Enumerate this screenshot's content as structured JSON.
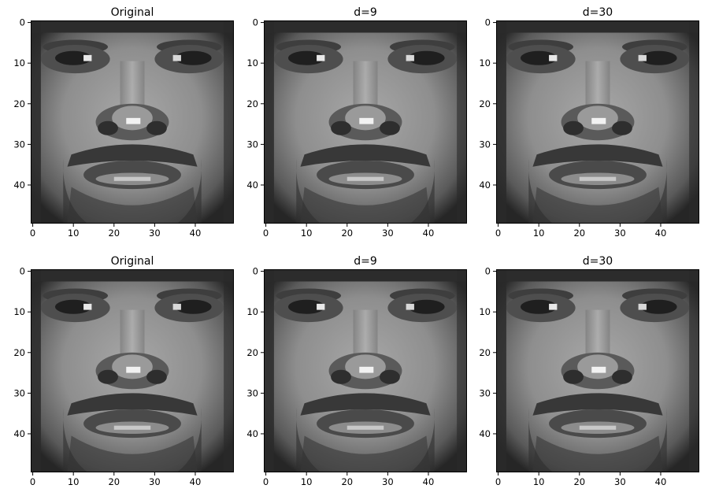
{
  "figure": {
    "background": "#ffffff",
    "axis_color": "#000000",
    "image_colormap": "gray"
  },
  "chart_data": [
    {
      "type": "heatmap",
      "title": "Original",
      "x_ticks": [
        "0",
        "10",
        "20",
        "30",
        "40"
      ],
      "y_ticks": [
        "0",
        "10",
        "20",
        "30",
        "40"
      ],
      "xlim": [
        -0.5,
        49.5
      ],
      "ylim": [
        49.5,
        -0.5
      ],
      "image_size": [
        50,
        50
      ],
      "image": "grayscale face",
      "row": 1,
      "col": 1
    },
    {
      "type": "heatmap",
      "title": "d=9",
      "x_ticks": [
        "0",
        "10",
        "20",
        "30",
        "40"
      ],
      "y_ticks": [
        "0",
        "10",
        "20",
        "30",
        "40"
      ],
      "xlim": [
        -0.5,
        49.5
      ],
      "ylim": [
        49.5,
        -0.5
      ],
      "image_size": [
        50,
        50
      ],
      "image": "grayscale face",
      "row": 1,
      "col": 2
    },
    {
      "type": "heatmap",
      "title": "d=30",
      "x_ticks": [
        "0",
        "10",
        "20",
        "30",
        "40"
      ],
      "y_ticks": [
        "0",
        "10",
        "20",
        "30",
        "40"
      ],
      "xlim": [
        -0.5,
        49.5
      ],
      "ylim": [
        49.5,
        -0.5
      ],
      "image_size": [
        50,
        50
      ],
      "image": "grayscale face",
      "row": 1,
      "col": 3
    },
    {
      "type": "heatmap",
      "title": "Original",
      "x_ticks": [
        "0",
        "10",
        "20",
        "30",
        "40"
      ],
      "y_ticks": [
        "0",
        "10",
        "20",
        "30",
        "40"
      ],
      "xlim": [
        -0.5,
        49.5
      ],
      "ylim": [
        49.5,
        -0.5
      ],
      "image_size": [
        50,
        50
      ],
      "image": "grayscale face",
      "row": 2,
      "col": 1
    },
    {
      "type": "heatmap",
      "title": "d=9",
      "x_ticks": [
        "0",
        "10",
        "20",
        "30",
        "40"
      ],
      "y_ticks": [
        "0",
        "10",
        "20",
        "30",
        "40"
      ],
      "xlim": [
        -0.5,
        49.5
      ],
      "ylim": [
        49.5,
        -0.5
      ],
      "image_size": [
        50,
        50
      ],
      "image": "grayscale face",
      "row": 2,
      "col": 2
    },
    {
      "type": "heatmap",
      "title": "d=30",
      "x_ticks": [
        "0",
        "10",
        "20",
        "30",
        "40"
      ],
      "y_ticks": [
        "0",
        "10",
        "20",
        "30",
        "40"
      ],
      "xlim": [
        -0.5,
        49.5
      ],
      "ylim": [
        49.5,
        -0.5
      ],
      "image_size": [
        50,
        50
      ],
      "image": "grayscale face",
      "row": 2,
      "col": 3
    }
  ]
}
